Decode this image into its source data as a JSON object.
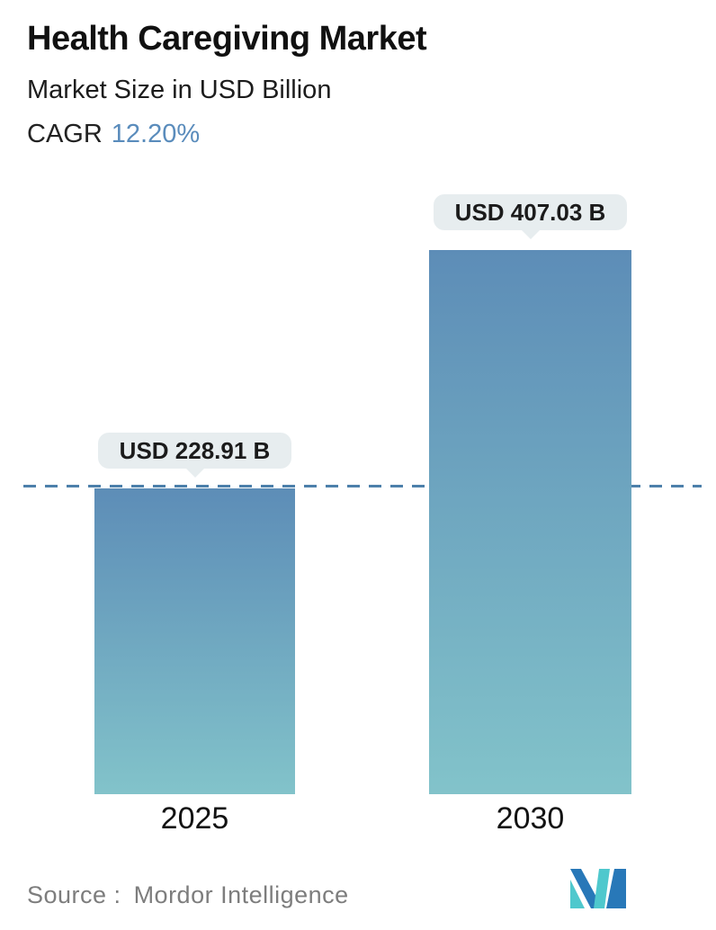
{
  "header": {
    "title": "Health Caregiving Market",
    "subtitle": "Market Size in USD Billion",
    "cagr_label": "CAGR",
    "cagr_value": "12.20%"
  },
  "chart_data": {
    "type": "bar",
    "categories": [
      "2025",
      "2030"
    ],
    "values": [
      228.91,
      407.03
    ],
    "unit": "USD Billion",
    "bar_labels": [
      "USD 228.91 B",
      "USD 407.03 B"
    ],
    "title": "Health Caregiving Market",
    "xlabel": "",
    "ylabel": "Market Size in USD Billion",
    "ylim": [
      0,
      450
    ],
    "grid": false,
    "legend_position": "none",
    "reference_line": {
      "value": 228.91,
      "style": "dashed",
      "note": "aligned with top of 2025 bar"
    }
  },
  "footer": {
    "source_label": "Source :",
    "source_value": "Mordor Intelligence",
    "logo_name": "mordor-intelligence-logo"
  },
  "colors": {
    "cagr_value": "#5a8cbc",
    "bar_gradient_top": "#5d8db7",
    "bar_gradient_bottom": "#82c3ca",
    "dashed_line": "#4d80ab",
    "label_pill_bg": "#e7edef",
    "title_text": "#111111",
    "source_text": "#7d7d7d",
    "logo_blue": "#2878b8",
    "logo_teal": "#4fc8cd"
  }
}
